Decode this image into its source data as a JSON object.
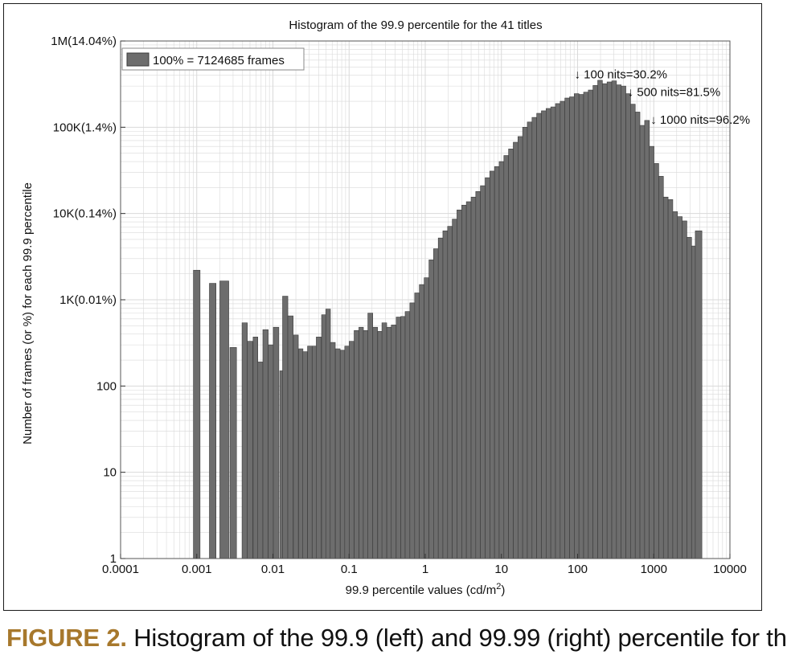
{
  "caption": {
    "figure_label": "FIGURE 2.",
    "text": "Histogram of the 99.9 (left) and 99.99 (right) percentile for th"
  },
  "colors": {
    "bar": "#6d6d6d",
    "bar_edge": "#3a3a3a",
    "grid": "#d9d9d9",
    "caption_label": "#a7782c"
  },
  "chart_data": {
    "type": "bar",
    "title": "Histogram of the 99.9 percentile for the 41 titles",
    "xlabel": "99.9 percentile values (cd/m",
    "xlabel_sup": "2",
    "xlabel_end": ")",
    "ylabel": "Number of frames (or %) for each 99.9 percentile",
    "x_scale": "log",
    "y_scale": "log",
    "xlim": [
      0.0001,
      10000
    ],
    "ylim": [
      1,
      1000000
    ],
    "grid": true,
    "legend": {
      "placement": "top-left",
      "label": "100% = 7124685 frames"
    },
    "x_ticks": [
      {
        "value": 0.0001,
        "label": "0.0001"
      },
      {
        "value": 0.001,
        "label": "0.001"
      },
      {
        "value": 0.01,
        "label": "0.01"
      },
      {
        "value": 0.1,
        "label": "0.1"
      },
      {
        "value": 1,
        "label": "1"
      },
      {
        "value": 10,
        "label": "10"
      },
      {
        "value": 100,
        "label": "100"
      },
      {
        "value": 1000,
        "label": "1000"
      },
      {
        "value": 10000,
        "label": "10000"
      }
    ],
    "y_ticks": [
      {
        "value": 1,
        "label": "1"
      },
      {
        "value": 10,
        "label": "10"
      },
      {
        "value": 100,
        "label": "100"
      },
      {
        "value": 1000,
        "label": "1K(0.01%)"
      },
      {
        "value": 10000,
        "label": "10K(0.14%)"
      },
      {
        "value": 100000,
        "label": "100K(1.4%)"
      },
      {
        "value": 1000000,
        "label": "1M(14.04%)"
      }
    ],
    "annotations": [
      {
        "text": "↓ 100 nits=30.2%",
        "x": 100,
        "y": 370000
      },
      {
        "text": "↓ 500 nits=81.5%",
        "x": 500,
        "y": 230000
      },
      {
        "text": "↓ 1000 nits=96.2%",
        "x": 1000,
        "y": 110000
      }
    ],
    "bars": [
      [
        0.001,
        2200
      ],
      [
        0.00162,
        1550
      ],
      [
        0.0023,
        1650
      ],
      [
        0.00301,
        280
      ],
      [
        0.00426,
        540
      ],
      [
        0.005,
        330
      ],
      [
        0.0059,
        370
      ],
      [
        0.0068,
        190
      ],
      [
        0.008,
        450
      ],
      [
        0.0094,
        300
      ],
      [
        0.011,
        480
      ],
      [
        0.013,
        150
      ],
      [
        0.0145,
        1100
      ],
      [
        0.017,
        650
      ],
      [
        0.02,
        390
      ],
      [
        0.0232,
        270
      ],
      [
        0.0265,
        250
      ],
      [
        0.0305,
        290
      ],
      [
        0.035,
        290
      ],
      [
        0.04,
        370
      ],
      [
        0.0465,
        670
      ],
      [
        0.053,
        780
      ],
      [
        0.061,
        320
      ],
      [
        0.071,
        270
      ],
      [
        0.082,
        260
      ],
      [
        0.094,
        290
      ],
      [
        0.108,
        330
      ],
      [
        0.125,
        440
      ],
      [
        0.144,
        480
      ],
      [
        0.165,
        440
      ],
      [
        0.19,
        700
      ],
      [
        0.22,
        480
      ],
      [
        0.254,
        430
      ],
      [
        0.29,
        540
      ],
      [
        0.335,
        480
      ],
      [
        0.385,
        510
      ],
      [
        0.445,
        630
      ],
      [
        0.51,
        640
      ],
      [
        0.585,
        730
      ],
      [
        0.675,
        920
      ],
      [
        0.78,
        1200
      ],
      [
        0.9,
        1500
      ],
      [
        1.04,
        1800
      ],
      [
        1.2,
        2900
      ],
      [
        1.38,
        3900
      ],
      [
        1.59,
        5200
      ],
      [
        1.83,
        6300
      ],
      [
        2.11,
        7100
      ],
      [
        2.43,
        8600
      ],
      [
        2.8,
        11000
      ],
      [
        3.23,
        12500
      ],
      [
        3.72,
        13700
      ],
      [
        4.29,
        15500
      ],
      [
        4.94,
        18000
      ],
      [
        5.69,
        21000
      ],
      [
        6.56,
        26000
      ],
      [
        7.56,
        31000
      ],
      [
        8.71,
        35000
      ],
      [
        10.03,
        40000
      ],
      [
        11.56,
        47000
      ],
      [
        13.32,
        56000
      ],
      [
        15.35,
        67000
      ],
      [
        17.69,
        78000
      ],
      [
        20.39,
        100000
      ],
      [
        23.49,
        115000
      ],
      [
        27.07,
        130000
      ],
      [
        31.19,
        145000
      ],
      [
        35.94,
        155000
      ],
      [
        41.42,
        165000
      ],
      [
        47.73,
        172000
      ],
      [
        55.0,
        188000
      ],
      [
        63.38,
        200000
      ],
      [
        73.04,
        218000
      ],
      [
        84.17,
        225000
      ],
      [
        97.0,
        245000
      ],
      [
        111.8,
        240000
      ],
      [
        128.8,
        255000
      ],
      [
        148.5,
        270000
      ],
      [
        171.1,
        305000
      ],
      [
        197.2,
        350000
      ],
      [
        227.2,
        320000
      ],
      [
        261.9,
        335000
      ],
      [
        301.8,
        345000
      ],
      [
        347.8,
        310000
      ],
      [
        400.8,
        300000
      ],
      [
        461.8,
        245000
      ],
      [
        532.2,
        185000
      ],
      [
        613.3,
        150000
      ],
      [
        706.8,
        105000
      ],
      [
        814.5,
        120000
      ],
      [
        938.6,
        60000
      ],
      [
        1082,
        38000
      ],
      [
        1247,
        27000
      ],
      [
        1437,
        15500
      ],
      [
        1656,
        14500
      ],
      [
        1908,
        10500
      ],
      [
        2199,
        9200
      ],
      [
        2534,
        8200
      ],
      [
        2920,
        5300
      ],
      [
        3365,
        4200
      ],
      [
        3878,
        6300
      ]
    ]
  }
}
